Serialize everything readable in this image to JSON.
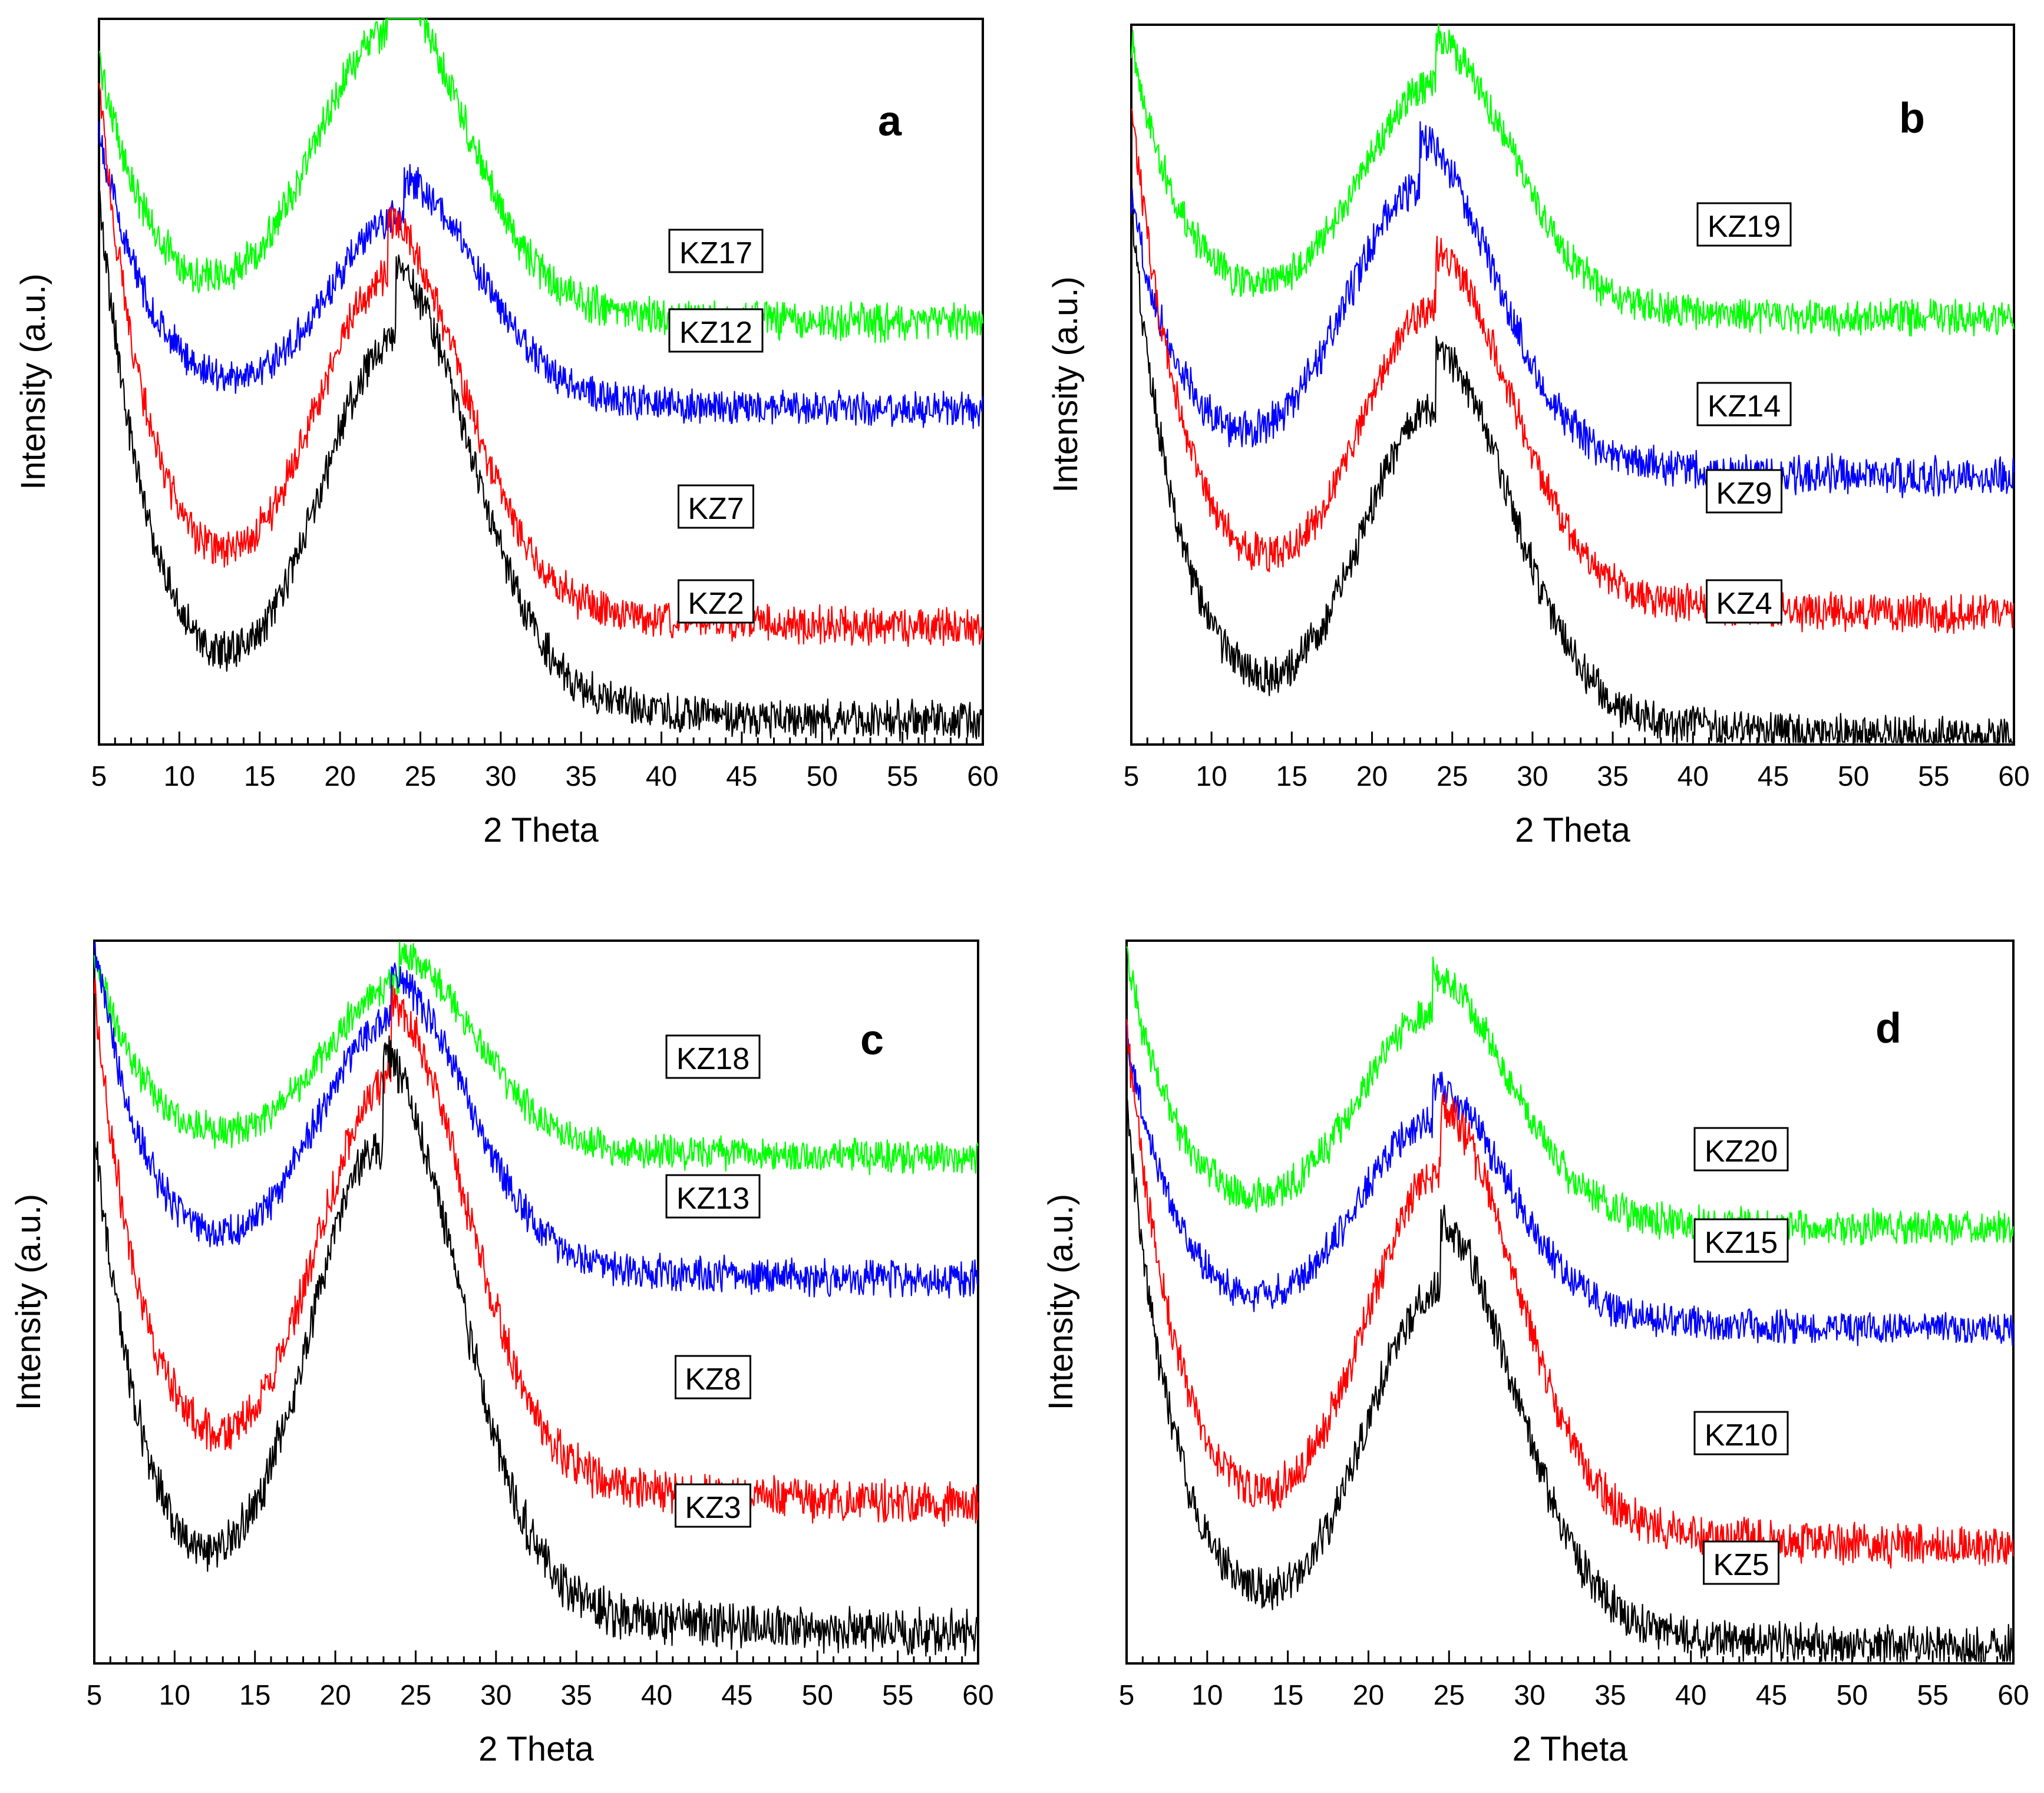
{
  "figure": {
    "description_note": "Four-panel XRD pattern figure"
  },
  "chart_data": [
    {
      "type": "line",
      "panel": "a",
      "title": "",
      "xlabel": "2 Theta",
      "ylabel": "Intensity (a.u.)",
      "xlim": [
        5,
        60
      ],
      "ylim": [
        0,
        100
      ],
      "xticks": [
        5,
        10,
        15,
        20,
        25,
        30,
        35,
        40,
        45,
        50,
        55,
        60
      ],
      "yticks_shown": false,
      "series": [
        {
          "name": "KZ17",
          "color": "#00ff00",
          "start": 95,
          "minimum": 70,
          "min_x": 12,
          "peak": 98,
          "peak_x": 23,
          "end": 58
        },
        {
          "name": "KZ12",
          "color": "#0000ff",
          "start": 85,
          "minimum": 53,
          "min_x": 14,
          "peak": 73,
          "peak_x": 24,
          "end": 46
        },
        {
          "name": "KZ7",
          "color": "#ff0000",
          "start": 91,
          "minimum": 35,
          "min_x": 14,
          "peak": 64,
          "peak_x": 23,
          "end": 16
        },
        {
          "name": "KZ2",
          "color": "#000000",
          "start": 76,
          "minimum": 22,
          "min_x": 15,
          "peak": 56,
          "peak_x": 23.5,
          "end": 3
        }
      ]
    },
    {
      "type": "line",
      "panel": "b",
      "title": "",
      "xlabel": "2 Theta",
      "ylabel": "Intensity (a.u.)",
      "xlim": [
        5,
        60
      ],
      "ylim": [
        0,
        100
      ],
      "xticks": [
        5,
        10,
        15,
        20,
        25,
        30,
        35,
        40,
        45,
        50,
        55,
        60
      ],
      "yticks_shown": false,
      "series": [
        {
          "name": "KZ19",
          "color": "#00ff00",
          "start": 98,
          "minimum": 69,
          "min_x": 13,
          "peak": 92,
          "peak_x": 24,
          "end": 59
        },
        {
          "name": "KZ14",
          "color": "#0000ff",
          "start": 76,
          "minimum": 47,
          "min_x": 14.5,
          "peak": 77,
          "peak_x": 23,
          "end": 37
        },
        {
          "name": "KZ9",
          "color": "#ff0000",
          "start": 90,
          "minimum": 33,
          "min_x": 15,
          "peak": 61,
          "peak_x": 24,
          "end": 18
        },
        {
          "name": "KZ4",
          "color": "#000000",
          "start": 74,
          "minimum": 16,
          "min_x": 15.5,
          "peak": 47,
          "peak_x": 24,
          "end": 1
        }
      ]
    },
    {
      "type": "line",
      "panel": "c",
      "title": "",
      "xlabel": "2 Theta",
      "ylabel": "Intensity (a.u.)",
      "xlim": [
        5,
        60
      ],
      "ylim": [
        0,
        100
      ],
      "xticks": [
        5,
        10,
        15,
        20,
        25,
        30,
        35,
        40,
        45,
        50,
        55,
        60
      ],
      "yticks_shown": false,
      "series": [
        {
          "name": "KZ18",
          "color": "#00ff00",
          "start": 98,
          "minimum": 78,
          "min_x": 14,
          "peak": 94,
          "peak_x": 24,
          "end": 70
        },
        {
          "name": "KZ13",
          "color": "#0000ff",
          "start": 100,
          "minimum": 64,
          "min_x": 13,
          "peak": 89,
          "peak_x": 23.5,
          "end": 53
        },
        {
          "name": "KZ8",
          "color": "#ff0000",
          "start": 93,
          "minimum": 42,
          "min_x": 13,
          "peak": 81,
          "peak_x": 23.5,
          "end": 22
        },
        {
          "name": "KZ3",
          "color": "#000000",
          "start": 74,
          "minimum": 24,
          "min_x": 12.5,
          "peak": 72,
          "peak_x": 23,
          "end": 4
        }
      ]
    },
    {
      "type": "line",
      "panel": "d",
      "title": "",
      "xlabel": "2 Theta",
      "ylabel": "Intensity (a.u.)",
      "xlim": [
        5,
        60
      ],
      "ylim": [
        0,
        100
      ],
      "xticks": [
        5,
        10,
        15,
        20,
        25,
        30,
        35,
        40,
        45,
        50,
        55,
        60
      ],
      "yticks_shown": false,
      "series": [
        {
          "name": "KZ20",
          "color": "#00ff00",
          "start": 98,
          "minimum": 69,
          "min_x": 14,
          "peak": 90,
          "peak_x": 24,
          "end": 60
        },
        {
          "name": "KZ15",
          "color": "#0000ff",
          "start": 87,
          "minimum": 57,
          "min_x": 14.5,
          "peak": 75,
          "peak_x": 24,
          "end": 46
        },
        {
          "name": "KZ10",
          "color": "#ff0000",
          "start": 88,
          "minimum": 33,
          "min_x": 15.5,
          "peak": 68,
          "peak_x": 24.5,
          "end": 16
        },
        {
          "name": "KZ5",
          "color": "#000000",
          "start": 77,
          "minimum": 15,
          "min_x": 15,
          "peak": 52,
          "peak_x": 24.5,
          "end": 2
        }
      ]
    }
  ]
}
